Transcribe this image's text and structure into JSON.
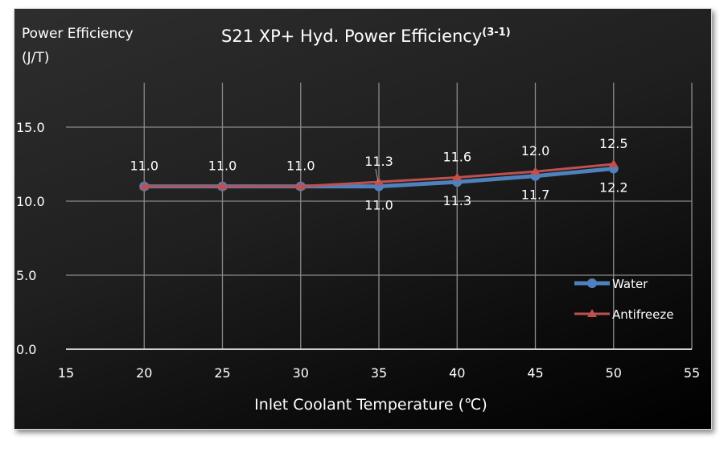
{
  "chart_data": {
    "type": "line",
    "title": "S21 XP+ Hyd. Power Efficiency",
    "title_superscript": "(3-1)",
    "ylabel_line1": "Power Efficiency",
    "ylabel_line2": "(J/T)",
    "xlabel": "Inlet Coolant Temperature (℃)",
    "xlim": [
      15,
      55
    ],
    "ylim": [
      0,
      18
    ],
    "xticks": [
      "15",
      "20",
      "25",
      "30",
      "35",
      "40",
      "45",
      "50",
      "55"
    ],
    "yticks": [
      "0.0",
      "5.0",
      "10.0",
      "15.0"
    ],
    "grid": true,
    "legend_position": "bottom-right",
    "x": [
      20,
      25,
      30,
      35,
      40,
      45,
      50
    ],
    "series": [
      {
        "name": "Water",
        "color": "#4f81bd",
        "marker": "circle",
        "values": [
          11.0,
          11.0,
          11.0,
          11.0,
          11.3,
          11.7,
          12.2
        ],
        "labels": [
          "",
          "",
          "",
          "11.0",
          "11.3",
          "11.7",
          "12.2"
        ]
      },
      {
        "name": "Antifreeze",
        "color": "#c0504d",
        "marker": "triangle",
        "values": [
          11.0,
          11.0,
          11.0,
          11.3,
          11.6,
          12.0,
          12.5
        ],
        "labels": [
          "11.0",
          "11.0",
          "11.0",
          "11.3",
          "11.6",
          "12.0",
          "12.5"
        ]
      }
    ]
  }
}
